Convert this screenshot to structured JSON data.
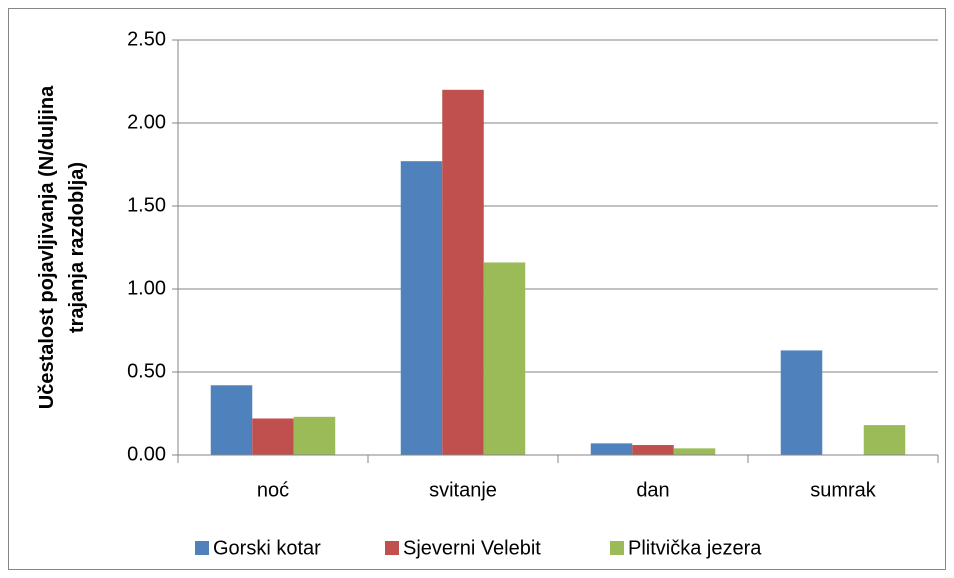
{
  "chart_data": {
    "type": "bar",
    "y_label": [
      "Učestalost pojavljivanja (N/duljina",
      "trajanja razdoblja)"
    ],
    "categories": [
      "noć",
      "svitanje",
      "dan",
      "sumrak"
    ],
    "series": [
      {
        "name": "Gorski kotar",
        "color": "#4f81bd",
        "values": [
          0.42,
          1.77,
          0.07,
          0.63
        ]
      },
      {
        "name": "Sjeverni Velebit",
        "color": "#c0504d",
        "values": [
          0.22,
          2.2,
          0.06,
          0
        ]
      },
      {
        "name": "Plitvička jezera",
        "color": "#9bbb59",
        "values": [
          0.23,
          1.16,
          0.04,
          0.18
        ]
      }
    ],
    "ylim": [
      0,
      2.5
    ],
    "yticks": [
      {
        "value": 0,
        "label": "0.00"
      },
      {
        "value": 0.5,
        "label": "0.50"
      },
      {
        "value": 1,
        "label": "1.00"
      },
      {
        "value": 1.5,
        "label": "1.50"
      },
      {
        "value": 2,
        "label": "2.00"
      },
      {
        "value": 2.5,
        "label": "2.50"
      }
    ],
    "grid": true,
    "legend": "bottom"
  }
}
